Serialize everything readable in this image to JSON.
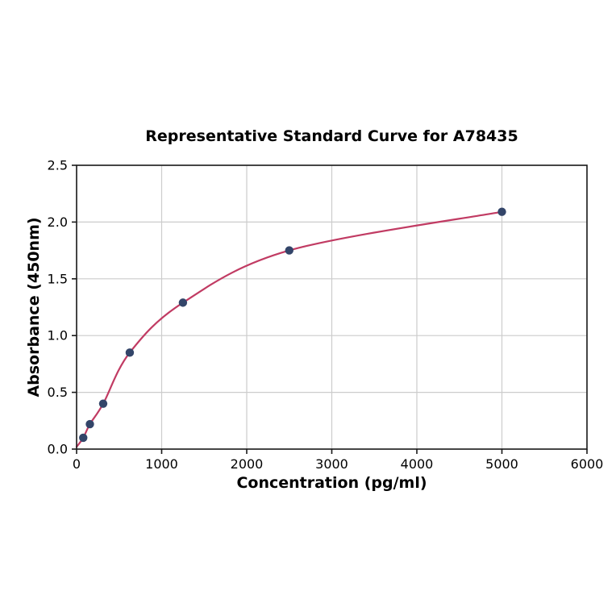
{
  "chart_data": {
    "type": "line",
    "title": "Representative Standard Curve for A78435",
    "xlabel": "Concentration (pg/ml)",
    "ylabel": "Absorbance (450nm)",
    "xlim": [
      0,
      6000
    ],
    "ylim": [
      0,
      2.5
    ],
    "x_ticks": [
      0,
      1000,
      2000,
      3000,
      4000,
      5000,
      6000
    ],
    "y_ticks": [
      0.0,
      0.5,
      1.0,
      1.5,
      2.0,
      2.5
    ],
    "grid": true,
    "legend": "none",
    "series": [
      {
        "name": "standard-points",
        "style": "scatter",
        "x": [
          78.1,
          156.3,
          312.5,
          625,
          1250,
          2500,
          5000
        ],
        "y": [
          0.1,
          0.22,
          0.4,
          0.85,
          1.29,
          1.75,
          2.09
        ]
      },
      {
        "name": "fitted-curve",
        "style": "smooth-line",
        "x": [
          0,
          78.1,
          156.3,
          312.5,
          625,
          1250,
          2500,
          5000
        ],
        "y": [
          0.02,
          0.1,
          0.22,
          0.4,
          0.85,
          1.29,
          1.75,
          2.09
        ]
      }
    ],
    "colors": {
      "curve": "#c13b63",
      "points": "#334569",
      "grid": "#cccccc",
      "axis": "#1a1a1a",
      "background": "#ffffff"
    }
  }
}
